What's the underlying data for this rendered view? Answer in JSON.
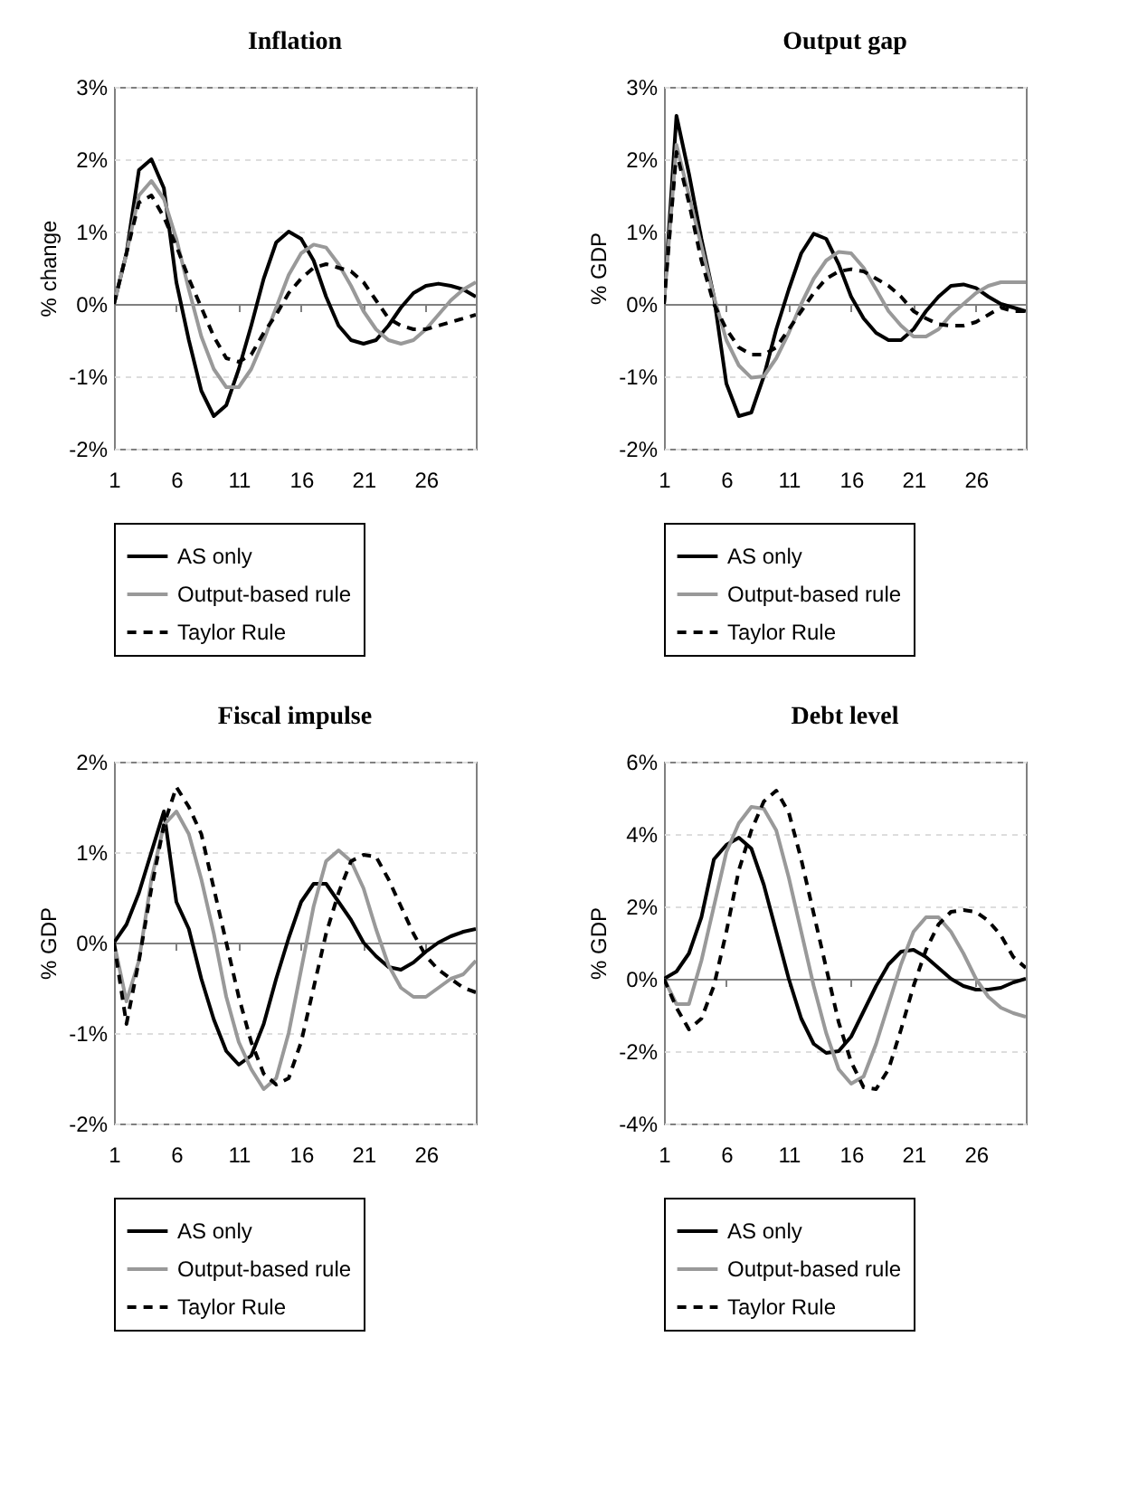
{
  "chart_data": [
    {
      "type": "line",
      "title": "Inflation",
      "ylabel": "% change",
      "x": [
        1,
        2,
        3,
        4,
        5,
        6,
        7,
        8,
        9,
        10,
        11,
        12,
        13,
        14,
        15,
        16,
        17,
        18,
        19,
        20,
        21,
        22,
        23,
        24,
        25,
        26,
        27,
        28,
        29,
        30
      ],
      "xlim": [
        1,
        30
      ],
      "xticks": [
        1,
        6,
        11,
        16,
        21,
        26
      ],
      "ylim": [
        -2,
        3
      ],
      "yticks": [
        {
          "value": -2,
          "label": "-2%"
        },
        {
          "value": -1,
          "label": "-1%"
        },
        {
          "value": 0,
          "label": "0%"
        },
        {
          "value": 1,
          "label": "1%"
        },
        {
          "value": 2,
          "label": "2%"
        },
        {
          "value": 3,
          "label": "3%"
        }
      ],
      "grid": "y",
      "legend": "bottom",
      "series": [
        {
          "name": "AS only",
          "color": "#000000",
          "line_style": "solid",
          "values": [
            0,
            0.7,
            1.85,
            2.0,
            1.6,
            0.3,
            -0.5,
            -1.2,
            -1.55,
            -1.4,
            -0.9,
            -0.3,
            0.35,
            0.85,
            1.0,
            0.9,
            0.6,
            0.1,
            -0.3,
            -0.5,
            -0.55,
            -0.5,
            -0.3,
            -0.05,
            0.15,
            0.25,
            0.28,
            0.25,
            0.2,
            0.1
          ]
        },
        {
          "name": "Output-based rule",
          "color": "#999999",
          "line_style": "solid",
          "values": [
            0,
            0.7,
            1.5,
            1.7,
            1.45,
            0.9,
            0.2,
            -0.45,
            -0.9,
            -1.15,
            -1.15,
            -0.9,
            -0.5,
            -0.05,
            0.4,
            0.7,
            0.82,
            0.78,
            0.55,
            0.25,
            -0.1,
            -0.35,
            -0.5,
            -0.55,
            -0.5,
            -0.35,
            -0.15,
            0.05,
            0.2,
            0.3
          ]
        },
        {
          "name": "Taylor Rule",
          "color": "#000000",
          "line_style": "dashed",
          "values": [
            0,
            0.7,
            1.4,
            1.5,
            1.2,
            0.8,
            0.35,
            -0.05,
            -0.45,
            -0.75,
            -0.8,
            -0.7,
            -0.4,
            -0.15,
            0.15,
            0.35,
            0.5,
            0.55,
            0.5,
            0.45,
            0.3,
            0.05,
            -0.2,
            -0.3,
            -0.35,
            -0.35,
            -0.3,
            -0.25,
            -0.2,
            -0.15
          ]
        }
      ]
    },
    {
      "type": "line",
      "title": "Output gap",
      "ylabel": "% GDP",
      "x": [
        1,
        2,
        3,
        4,
        5,
        6,
        7,
        8,
        9,
        10,
        11,
        12,
        13,
        14,
        15,
        16,
        17,
        18,
        19,
        20,
        21,
        22,
        23,
        24,
        25,
        26,
        27,
        28,
        29,
        30
      ],
      "xlim": [
        1,
        30
      ],
      "xticks": [
        1,
        6,
        11,
        16,
        21,
        26
      ],
      "ylim": [
        -2,
        3
      ],
      "yticks": [
        {
          "value": -2,
          "label": "-2%"
        },
        {
          "value": -1,
          "label": "-1%"
        },
        {
          "value": 0,
          "label": "0%"
        },
        {
          "value": 1,
          "label": "1%"
        },
        {
          "value": 2,
          "label": "2%"
        },
        {
          "value": 3,
          "label": "3%"
        }
      ],
      "grid": "y",
      "legend": "bottom",
      "series": [
        {
          "name": "AS only",
          "color": "#000000",
          "line_style": "solid",
          "values": [
            0,
            2.6,
            1.8,
            0.9,
            0.1,
            -1.1,
            -1.55,
            -1.5,
            -1.0,
            -0.35,
            0.2,
            0.7,
            0.97,
            0.9,
            0.55,
            0.1,
            -0.2,
            -0.4,
            -0.5,
            -0.5,
            -0.35,
            -0.1,
            0.1,
            0.25,
            0.27,
            0.22,
            0.1,
            0.0,
            -0.05,
            -0.1
          ]
        },
        {
          "name": "Output-based rule",
          "color": "#999999",
          "line_style": "solid",
          "values": [
            0,
            2.2,
            1.5,
            0.8,
            0.1,
            -0.5,
            -0.85,
            -1.02,
            -1.0,
            -0.75,
            -0.4,
            0.0,
            0.35,
            0.6,
            0.72,
            0.7,
            0.5,
            0.2,
            -0.1,
            -0.3,
            -0.45,
            -0.45,
            -0.35,
            -0.15,
            0.0,
            0.15,
            0.25,
            0.3,
            0.3,
            0.3
          ]
        },
        {
          "name": "Taylor Rule",
          "color": "#000000",
          "line_style": "dashed",
          "values": [
            0,
            2.1,
            1.4,
            0.6,
            0.0,
            -0.35,
            -0.6,
            -0.7,
            -0.7,
            -0.6,
            -0.35,
            -0.1,
            0.15,
            0.35,
            0.45,
            0.48,
            0.45,
            0.35,
            0.25,
            0.1,
            -0.1,
            -0.2,
            -0.28,
            -0.3,
            -0.3,
            -0.25,
            -0.15,
            -0.05,
            -0.1,
            -0.1
          ]
        }
      ]
    },
    {
      "type": "line",
      "title": "Fiscal impulse",
      "ylabel": "% GDP",
      "x": [
        1,
        2,
        3,
        4,
        5,
        6,
        7,
        8,
        9,
        10,
        11,
        12,
        13,
        14,
        15,
        16,
        17,
        18,
        19,
        20,
        21,
        22,
        23,
        24,
        25,
        26,
        27,
        28,
        29,
        30
      ],
      "xlim": [
        1,
        30
      ],
      "xticks": [
        1,
        6,
        11,
        16,
        21,
        26
      ],
      "ylim": [
        -2,
        2
      ],
      "yticks": [
        {
          "value": -2,
          "label": "-2%"
        },
        {
          "value": -1,
          "label": "-1%"
        },
        {
          "value": 0,
          "label": "0%"
        },
        {
          "value": 1,
          "label": "1%"
        },
        {
          "value": 2,
          "label": "2%"
        }
      ],
      "grid": "y",
      "legend": "bottom",
      "series": [
        {
          "name": "AS only",
          "color": "#000000",
          "line_style": "solid",
          "values": [
            0,
            0.2,
            0.55,
            1.0,
            1.45,
            0.45,
            0.15,
            -0.4,
            -0.85,
            -1.2,
            -1.35,
            -1.25,
            -0.9,
            -0.4,
            0.05,
            0.45,
            0.65,
            0.65,
            0.45,
            0.25,
            0.0,
            -0.15,
            -0.27,
            -0.3,
            -0.22,
            -0.1,
            0.0,
            0.07,
            0.12,
            0.15
          ]
        },
        {
          "name": "Output-based rule",
          "color": "#999999",
          "line_style": "solid",
          "values": [
            0,
            -0.65,
            -0.2,
            0.7,
            1.3,
            1.45,
            1.2,
            0.7,
            0.1,
            -0.6,
            -1.1,
            -1.4,
            -1.62,
            -1.5,
            -1.0,
            -0.3,
            0.4,
            0.9,
            1.02,
            0.9,
            0.6,
            0.15,
            -0.25,
            -0.5,
            -0.6,
            -0.6,
            -0.5,
            -0.4,
            -0.35,
            -0.2
          ]
        },
        {
          "name": "Taylor Rule",
          "color": "#000000",
          "line_style": "dashed",
          "values": [
            0,
            -0.9,
            -0.2,
            0.6,
            1.3,
            1.72,
            1.5,
            1.2,
            0.6,
            0.0,
            -0.6,
            -1.1,
            -1.45,
            -1.57,
            -1.5,
            -1.1,
            -0.5,
            0.1,
            0.55,
            0.9,
            0.97,
            0.95,
            0.7,
            0.4,
            0.1,
            -0.15,
            -0.3,
            -0.4,
            -0.5,
            -0.55
          ]
        }
      ]
    },
    {
      "type": "line",
      "title": "Debt level",
      "ylabel": "% GDP",
      "x": [
        1,
        2,
        3,
        4,
        5,
        6,
        7,
        8,
        9,
        10,
        11,
        12,
        13,
        14,
        15,
        16,
        17,
        18,
        19,
        20,
        21,
        22,
        23,
        24,
        25,
        26,
        27,
        28,
        29,
        30
      ],
      "xlim": [
        1,
        30
      ],
      "xticks": [
        1,
        6,
        11,
        16,
        21,
        26
      ],
      "ylim": [
        -4,
        6
      ],
      "yticks": [
        {
          "value": -4,
          "label": "-4%"
        },
        {
          "value": -2,
          "label": "-2%"
        },
        {
          "value": 0,
          "label": "0%"
        },
        {
          "value": 2,
          "label": "2%"
        },
        {
          "value": 4,
          "label": "4%"
        },
        {
          "value": 6,
          "label": "6%"
        }
      ],
      "grid": "y",
      "legend": "bottom",
      "series": [
        {
          "name": "AS only",
          "color": "#000000",
          "line_style": "solid",
          "values": [
            0,
            0.2,
            0.7,
            1.7,
            3.3,
            3.7,
            3.9,
            3.6,
            2.6,
            1.3,
            0.0,
            -1.1,
            -1.8,
            -2.05,
            -2.0,
            -1.6,
            -0.9,
            -0.2,
            0.4,
            0.75,
            0.8,
            0.6,
            0.3,
            0.0,
            -0.2,
            -0.3,
            -0.3,
            -0.25,
            -0.1,
            0.0
          ]
        },
        {
          "name": "Output-based rule",
          "color": "#999999",
          "line_style": "solid",
          "values": [
            0,
            -0.7,
            -0.7,
            0.5,
            2.0,
            3.5,
            4.3,
            4.75,
            4.7,
            4.1,
            2.8,
            1.3,
            -0.2,
            -1.5,
            -2.5,
            -2.9,
            -2.7,
            -1.8,
            -0.7,
            0.4,
            1.3,
            1.7,
            1.7,
            1.3,
            0.7,
            0.0,
            -0.5,
            -0.8,
            -0.95,
            -1.05
          ]
        },
        {
          "name": "Taylor Rule",
          "color": "#000000",
          "line_style": "dashed",
          "values": [
            0,
            -0.8,
            -1.4,
            -1.1,
            -0.2,
            1.3,
            3.0,
            4.1,
            4.9,
            5.2,
            4.6,
            3.3,
            1.8,
            0.3,
            -1.2,
            -2.3,
            -3.0,
            -3.05,
            -2.5,
            -1.4,
            -0.2,
            0.8,
            1.5,
            1.85,
            1.9,
            1.85,
            1.6,
            1.2,
            0.6,
            0.3
          ]
        }
      ]
    }
  ]
}
